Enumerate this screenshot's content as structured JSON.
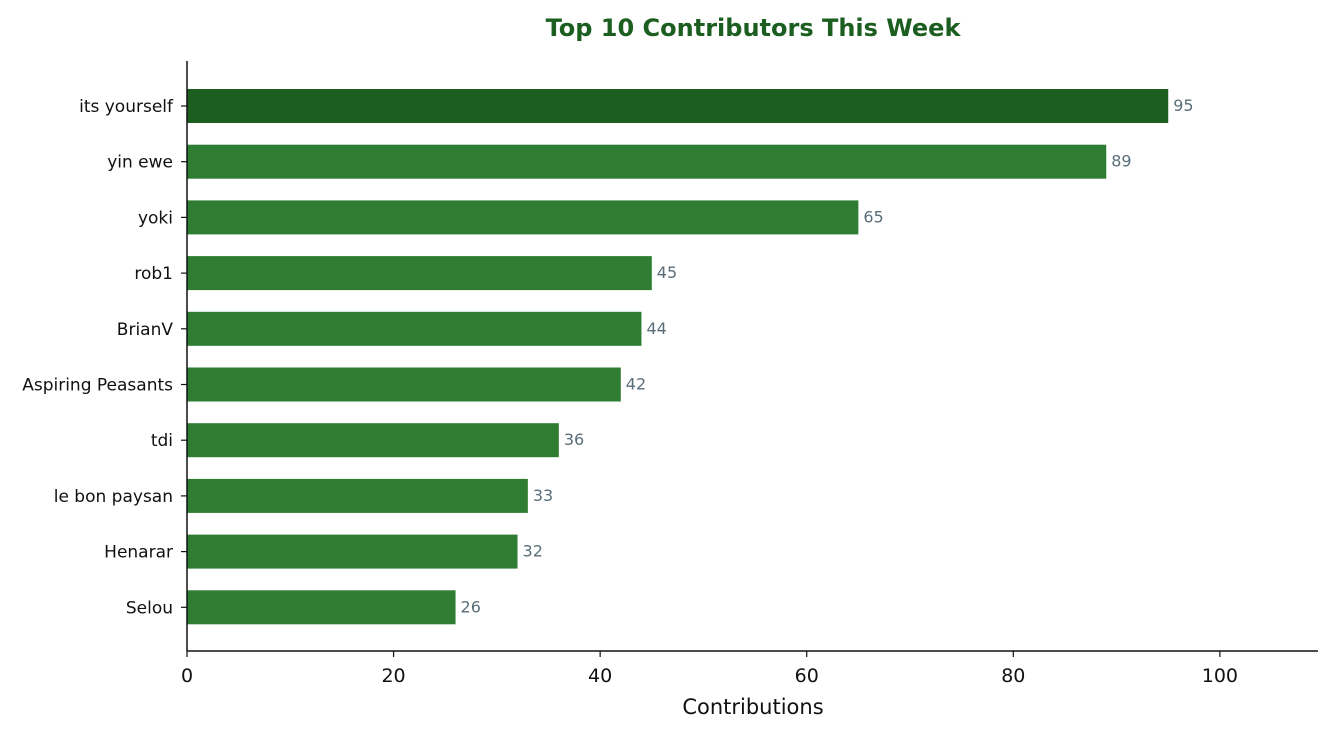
{
  "chart_data": {
    "type": "bar",
    "orientation": "horizontal",
    "title": "Top 10 Contributors This Week",
    "xlabel": "Contributions",
    "ylabel": "",
    "categories": [
      "its yourself",
      "yin ewe",
      "yoki",
      "rob1",
      "BrianV",
      "Aspiring Peasants",
      "tdi",
      "le bon paysan",
      "Henarar",
      "Selou"
    ],
    "values": [
      95,
      89,
      65,
      45,
      44,
      42,
      36,
      33,
      32,
      26
    ],
    "xlim": [
      0,
      109.5
    ],
    "xticks": [
      0,
      20,
      40,
      60,
      80,
      100
    ],
    "grid": false,
    "colors": {
      "top_bar": "#1b5e20",
      "bar": "#2e7d32",
      "title": "#1b5e20",
      "value_label": "#5a6e7a",
      "axis": "#111111"
    }
  }
}
